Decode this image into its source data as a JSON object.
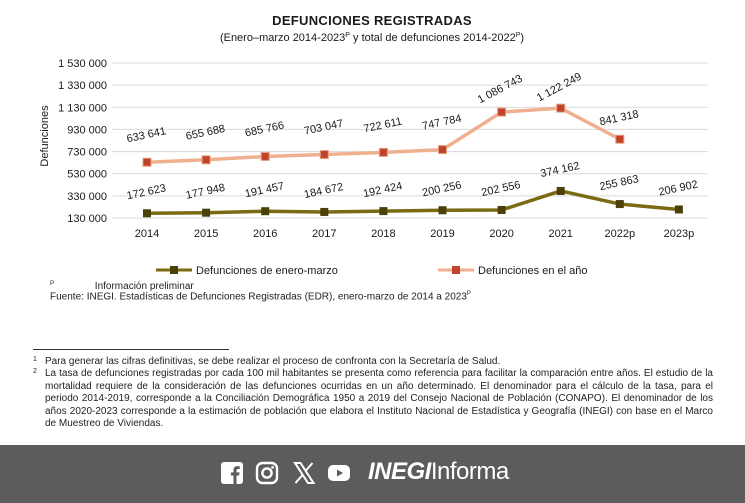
{
  "chart_data": {
    "type": "line",
    "title": "DEFUNCIONES REGISTRADAS",
    "subtitle": "(Enero–marzo 2014-2023",
    "subtitle_sup1": "P",
    "subtitle_mid": " y total de defunciones 2014-2022",
    "subtitle_sup2": "P",
    "subtitle_end": ")",
    "ylabel": "Defunciones",
    "xlabel": "",
    "categories": [
      "2014",
      "2015",
      "2016",
      "2017",
      "2018",
      "2019",
      "2020",
      "2021",
      "2022p",
      "2023p"
    ],
    "y_ticks": [
      "1 530 000",
      "1 330 000",
      "1 130 000",
      "930 000",
      "730 000",
      "530 000",
      "330 000",
      "130 000"
    ],
    "ylim": [
      130000,
      1530000
    ],
    "grid": true,
    "legend_position": "bottom",
    "series": [
      {
        "name": "Defunciones de enero-marzo",
        "color": "#7a6a12",
        "values": [
          172623,
          177948,
          191457,
          184672,
          192424,
          200256,
          202556,
          374162,
          255863,
          206902
        ],
        "labels": [
          "172 623",
          "177 948",
          "191 457",
          "184 672",
          "192 424",
          "200 256",
          "202 556",
          "374 162",
          "255 863",
          "206 902"
        ]
      },
      {
        "name": "Defunciones en el año",
        "color": "#f0b090",
        "marker_color": "#c0442c",
        "values": [
          633641,
          655688,
          685766,
          703047,
          722611,
          747784,
          1086743,
          1122249,
          841318,
          null
        ],
        "labels": [
          "633 641",
          "655 688",
          "685 766",
          "703 047",
          "722 611",
          "747 784",
          "1 086 743",
          "1 122 249",
          "841 318",
          ""
        ]
      }
    ]
  },
  "notes": {
    "prelim_mark": "P",
    "prelim_text": "Información preliminar",
    "source": "Fuente: INEGI. Estadísticas de Defunciones Registradas (EDR), enero-marzo de 2014 a 2023",
    "source_sup": "P"
  },
  "footnotes": [
    {
      "num": "1",
      "text": "Para generar las cifras definitivas, se debe realizar el proceso de confronta con la Secretaría de Salud."
    },
    {
      "num": "2",
      "text": "La tasa de defunciones registradas por cada 100 mil habitantes se presenta como referencia para facilitar la comparación entre años. El estudio de la mortalidad requiere de la consideración de las defunciones ocurridas en un año determinado. El denominador para el cálculo de la tasa, para el periodo 2014-2019, corresponde a la Conciliación Demográfica 1950 a 2019 del Consejo Nacional de Población (CONAPO). El denominador de los años 2020-2023 corresponde a la estimación de población que elabora el Instituto Nacional de Estadística y Geografía (INEGI) con base en el Marco de Muestreo de Viviendas."
    }
  ],
  "footer": {
    "brand_bold": "INEGI",
    "brand_rest": "Informa",
    "icons": [
      "facebook-icon",
      "instagram-icon",
      "x-icon",
      "youtube-icon"
    ]
  }
}
